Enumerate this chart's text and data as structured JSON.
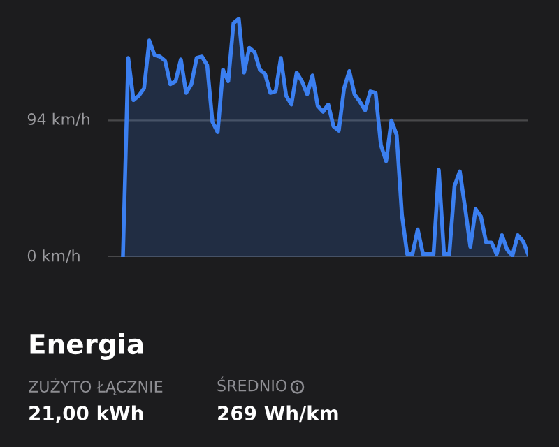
{
  "chart_data": {
    "type": "area",
    "categories": [
      null,
      null,
      null,
      null,
      null,
      null,
      null,
      null,
      null,
      null,
      null,
      null,
      null,
      null,
      null,
      null,
      null,
      null,
      null,
      null,
      null,
      null,
      null,
      null,
      null,
      null,
      null,
      null,
      null,
      null,
      null,
      null,
      null,
      null,
      null,
      null,
      null,
      null,
      null,
      null,
      null,
      null,
      null,
      null,
      null,
      null,
      null,
      null,
      null,
      null,
      null,
      null,
      null,
      null,
      null,
      null,
      null,
      null,
      null,
      null,
      null,
      null,
      null,
      null,
      null,
      null,
      null,
      null,
      null,
      null,
      null,
      null,
      null,
      null,
      null,
      null,
      null,
      null
    ],
    "series": [
      {
        "color": "#3b7ff0",
        "values": [
          1,
          137,
          108,
          111,
          116,
          149,
          139,
          138,
          135,
          119,
          121,
          136,
          113,
          119,
          137,
          138,
          132,
          93,
          86,
          129,
          121,
          161,
          164,
          127,
          144,
          141,
          129,
          126,
          113,
          114,
          137,
          111,
          105,
          127,
          121,
          112,
          125,
          104,
          100,
          105,
          90,
          87,
          116,
          128,
          112,
          107,
          101,
          114,
          113,
          77,
          66,
          94,
          84,
          29,
          2,
          2,
          19,
          2,
          2,
          2,
          60,
          2,
          2,
          49,
          59,
          34,
          7,
          33,
          28,
          10,
          10,
          2,
          15,
          5,
          1,
          15,
          11,
          2
        ]
      }
    ],
    "ylim": [
      0,
      175
    ],
    "yticks": [
      {
        "value": 0,
        "label": "0 km/h"
      },
      {
        "value": 94,
        "label": "94 km/h"
      }
    ],
    "tick_labels": "y",
    "grid": "y",
    "annotations": [
      "Energia",
      "ZUŻYTO ŁĄCZNIE",
      "21,00 kWh",
      "ŚREDNIO",
      "269 Wh/km"
    ]
  }
}
